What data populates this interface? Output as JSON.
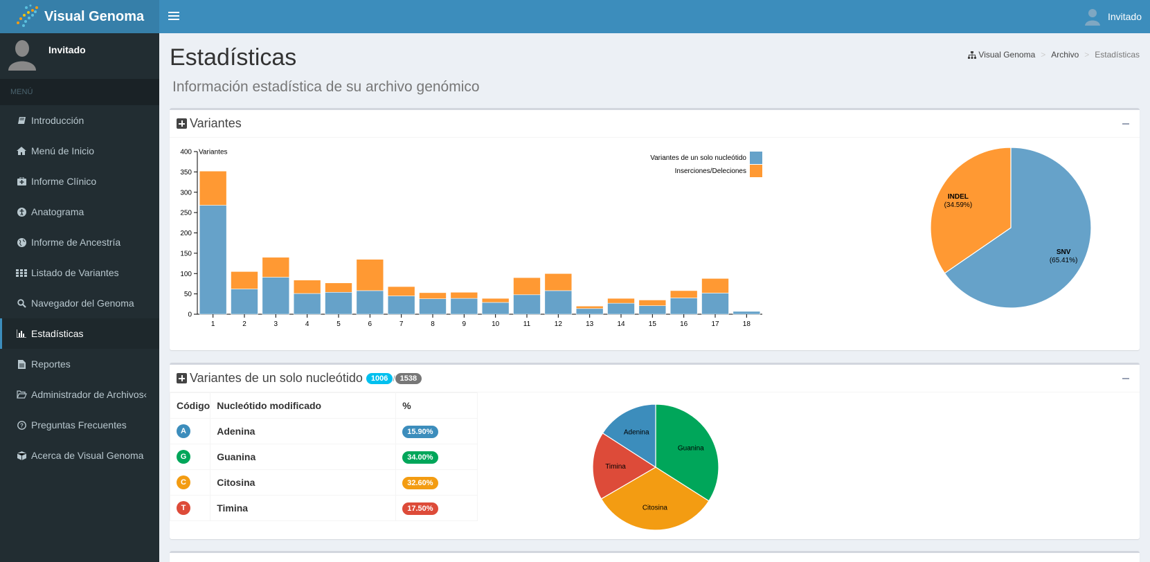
{
  "app": {
    "name": "Visual Genoma",
    "user": "Invitado"
  },
  "sidebar": {
    "user_name": "Invitado",
    "menu_header": "MENÚ",
    "items": [
      {
        "label": "Introducción",
        "icon": "book-icon"
      },
      {
        "label": "Menú de Inicio",
        "icon": "home-icon"
      },
      {
        "label": "Informe Clínico",
        "icon": "medkit-icon"
      },
      {
        "label": "Anatograma",
        "icon": "accessibility-icon"
      },
      {
        "label": "Informe de Ancestría",
        "icon": "globe-icon"
      },
      {
        "label": "Listado de Variantes",
        "icon": "list-icon"
      },
      {
        "label": "Navegador del Genoma",
        "icon": "search-icon"
      },
      {
        "label": "Estadísticas",
        "icon": "bar-chart-icon",
        "active": true
      },
      {
        "label": "Reportes",
        "icon": "file-icon"
      },
      {
        "label": "Administrador de Archivos",
        "icon": "folder-open-icon",
        "has_submenu": true
      },
      {
        "label": "Preguntas Frecuentes",
        "icon": "question-icon"
      },
      {
        "label": "Acerca de Visual Genoma",
        "icon": "cube-icon"
      }
    ]
  },
  "page": {
    "title": "Estadísticas",
    "subtitle": "Información estadística de su archivo genómico",
    "breadcrumb": [
      "Visual Genoma",
      "Archivo",
      "Estadísticas"
    ]
  },
  "variants_box": {
    "title": "Variantes"
  },
  "snv_box": {
    "title": "Variantes de un solo nucleótido",
    "badge_count": "1006",
    "badge_separator": "/",
    "badge_total": "1538",
    "table": {
      "headers": [
        "Código",
        "Nucleótido modificado",
        "%"
      ],
      "rows": [
        {
          "code": "A",
          "name": "Adenina",
          "pct": "15.90%",
          "color": "#3c8dbc"
        },
        {
          "code": "G",
          "name": "Guanina",
          "pct": "34.00%",
          "color": "#00a65a"
        },
        {
          "code": "C",
          "name": "Citosina",
          "pct": "32.60%",
          "color": "#f39c12"
        },
        {
          "code": "T",
          "name": "Timina",
          "pct": "17.50%",
          "color": "#dd4b39"
        }
      ]
    }
  },
  "chart_data": [
    {
      "type": "bar",
      "stacked": true,
      "ylabel": "Variantes",
      "ylim": [
        0,
        400
      ],
      "yticks": [
        0,
        50,
        100,
        150,
        200,
        250,
        300,
        350,
        400
      ],
      "categories": [
        "1",
        "2",
        "3",
        "4",
        "5",
        "6",
        "7",
        "8",
        "9",
        "10",
        "11",
        "12",
        "13",
        "14",
        "15",
        "16",
        "17",
        "18"
      ],
      "legend_position": "top-right",
      "series": [
        {
          "name": "Variantes de un solo nucleótido",
          "color": "#66a2c9",
          "values": [
            268,
            62,
            91,
            51,
            54,
            58,
            45,
            38,
            39,
            29,
            48,
            58,
            14,
            27,
            21,
            40,
            52,
            7
          ]
        },
        {
          "name": "Inserciones/Deleciones",
          "color": "#ff9933",
          "values": [
            84,
            43,
            49,
            33,
            23,
            77,
            23,
            15,
            15,
            10,
            42,
            42,
            6,
            12,
            14,
            18,
            36,
            0
          ]
        }
      ]
    },
    {
      "type": "pie",
      "slices": [
        {
          "label": "SNV",
          "pct_label": "(65.41%)",
          "value": 65.41,
          "color": "#66a2c9"
        },
        {
          "label": "INDEL",
          "pct_label": "(34.59%)",
          "value": 34.59,
          "color": "#ff9933"
        }
      ]
    },
    {
      "type": "pie",
      "slices": [
        {
          "label": "Guanina",
          "value": 34.0,
          "color": "#00a65a"
        },
        {
          "label": "Citosina",
          "value": 32.6,
          "color": "#f39c12"
        },
        {
          "label": "Timina",
          "value": 17.5,
          "color": "#dd4b39"
        },
        {
          "label": "Adenina",
          "value": 15.9,
          "color": "#3c8dbc"
        }
      ]
    }
  ]
}
